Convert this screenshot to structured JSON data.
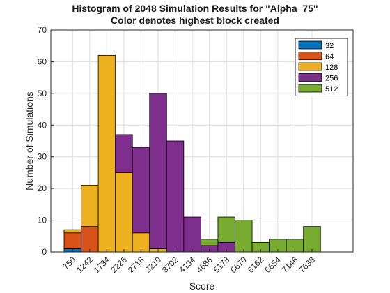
{
  "chart_data": {
    "type": "bar",
    "stacked": true,
    "title": "Histogram of 2048 Simulation Results for \"Alpha_75\"",
    "subtitle": "Color denotes highest block created",
    "xlabel": "Score",
    "ylabel": "Number of Simulations",
    "ylim": [
      0,
      70
    ],
    "yticks": [
      0,
      10,
      20,
      30,
      40,
      50,
      60,
      70
    ],
    "grid": true,
    "legend_position": "top-right",
    "categories": [
      "750",
      "1242",
      "1734",
      "2226",
      "2718",
      "3210",
      "3702",
      "4194",
      "4686",
      "5178",
      "5670",
      "6162",
      "6654",
      "7146",
      "7638"
    ],
    "series": [
      {
        "name": "32",
        "color": "#0072bd",
        "values": [
          1,
          0,
          0,
          0,
          0,
          0,
          0,
          0,
          0,
          0,
          0,
          0,
          0,
          0,
          0
        ]
      },
      {
        "name": "64",
        "color": "#d95319",
        "values": [
          5,
          8,
          0,
          0,
          0,
          0,
          0,
          0,
          0,
          0,
          0,
          0,
          0,
          0,
          0
        ]
      },
      {
        "name": "128",
        "color": "#edb120",
        "values": [
          1,
          13,
          62,
          25,
          6,
          1,
          0,
          0,
          0,
          0,
          0,
          0,
          0,
          0,
          0
        ]
      },
      {
        "name": "256",
        "color": "#7e2f8e",
        "values": [
          0,
          0,
          0,
          12,
          27,
          49,
          35,
          11,
          2,
          3,
          0,
          0,
          0,
          0,
          0
        ]
      },
      {
        "name": "512",
        "color": "#77ac30",
        "values": [
          0,
          0,
          0,
          0,
          0,
          0,
          0,
          0,
          2,
          8,
          10,
          3,
          4,
          4,
          8
        ]
      }
    ]
  }
}
